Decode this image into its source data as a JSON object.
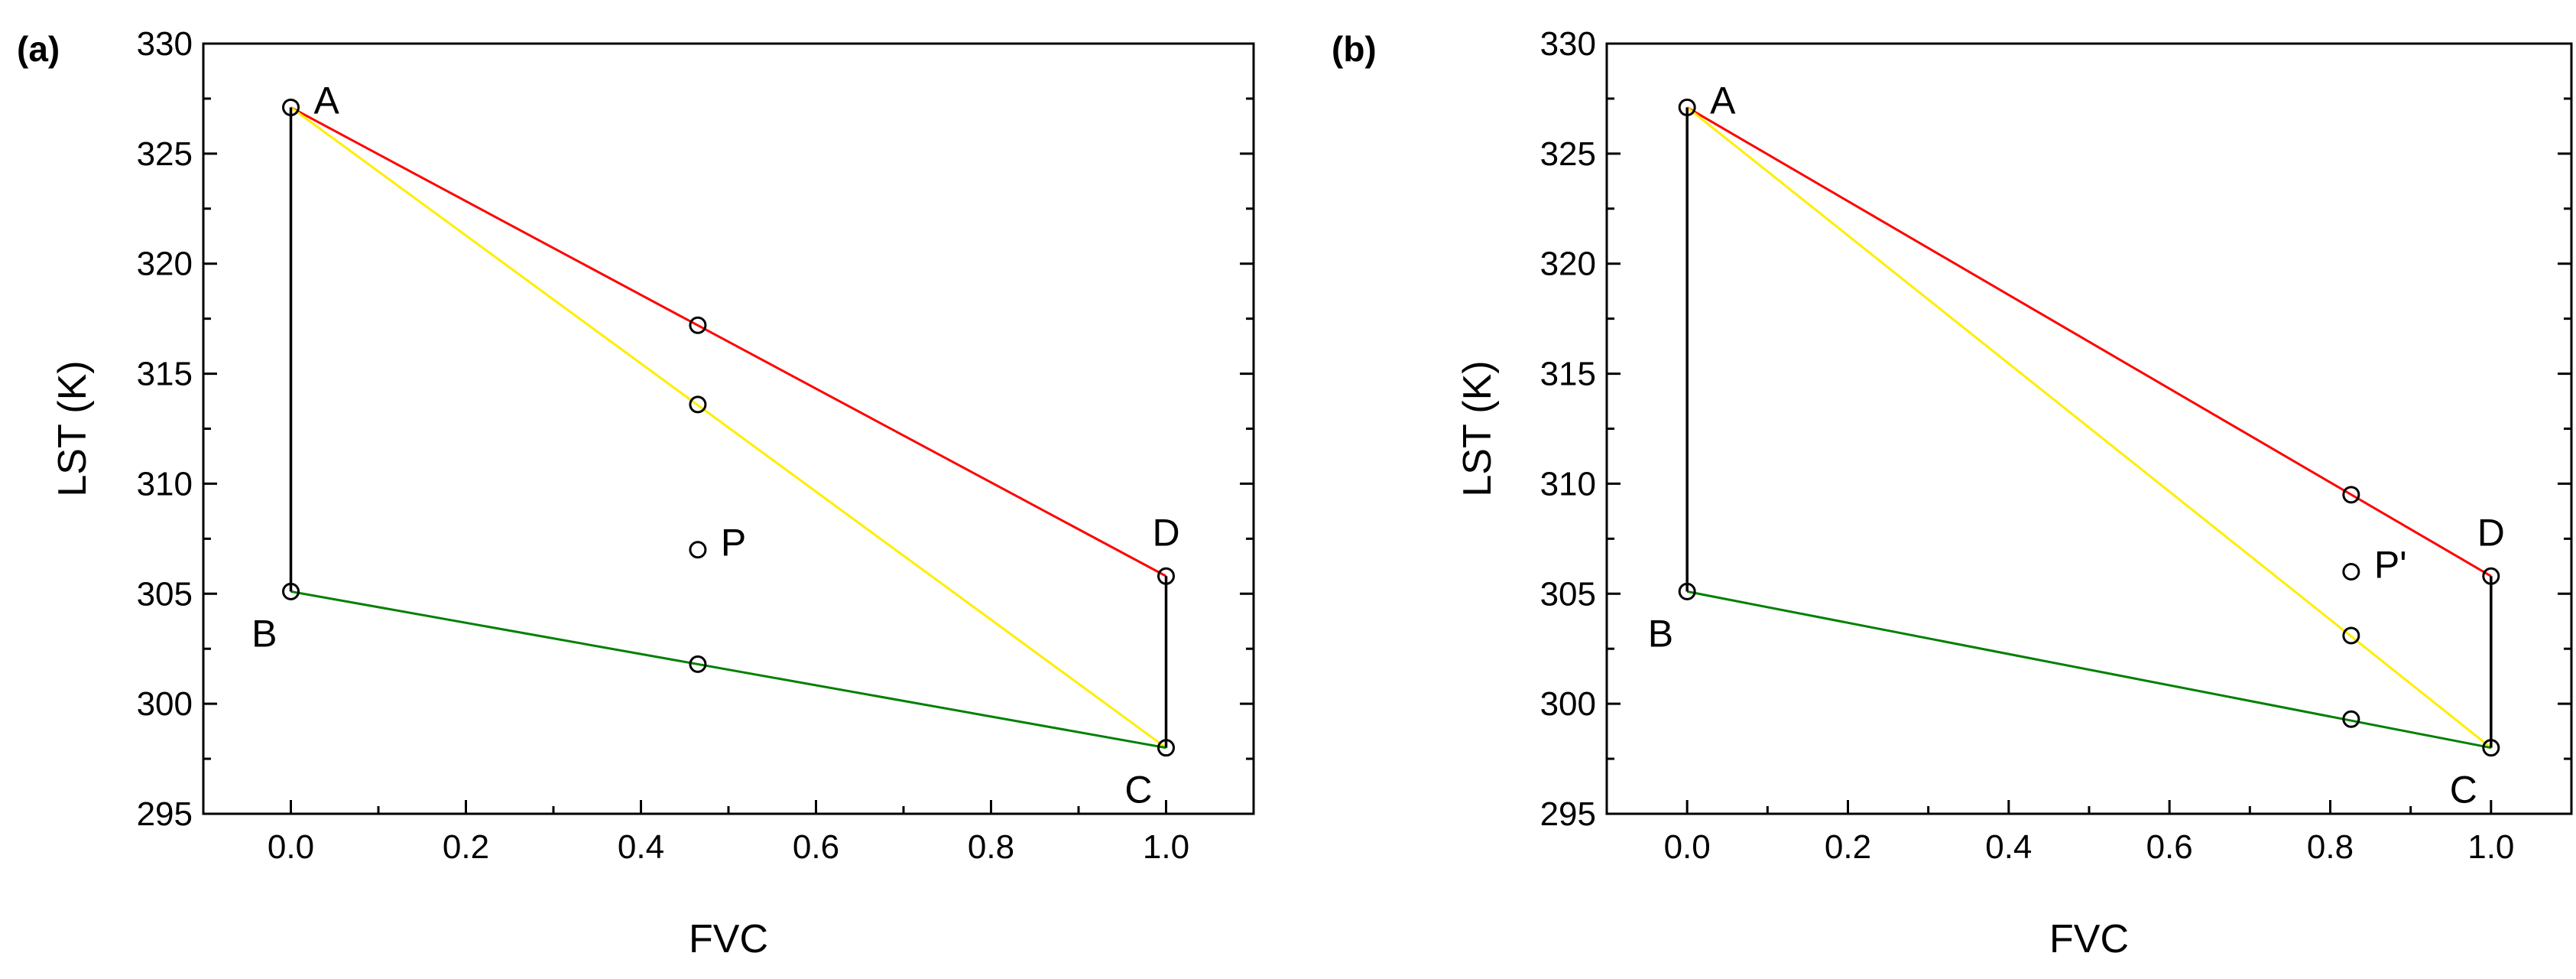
{
  "figure": {
    "panels": [
      "(a)",
      "(b)"
    ]
  },
  "chart_data": [
    {
      "panel_label": "(a)",
      "type": "line",
      "xlabel": "FVC",
      "ylabel": "LST (K)",
      "xlim": [
        -0.1,
        1.1
      ],
      "ylim": [
        295,
        330
      ],
      "xticks": [
        0.0,
        0.2,
        0.4,
        0.6,
        0.8,
        1.0
      ],
      "xtick_labels": [
        "0.0",
        "0.2",
        "0.4",
        "0.6",
        "0.8",
        "1.0"
      ],
      "yticks": [
        295,
        300,
        305,
        310,
        315,
        320,
        325,
        330
      ],
      "ytick_labels": [
        "295",
        "300",
        "305",
        "310",
        "315",
        "320",
        "325",
        "330"
      ],
      "series": [
        {
          "name": "AD",
          "color": "#ff0000",
          "x": [
            0.0,
            1.0
          ],
          "y": [
            327.1,
            305.8
          ]
        },
        {
          "name": "AC",
          "color": "#ffee00",
          "x": [
            0.0,
            1.0
          ],
          "y": [
            327.1,
            298.0
          ]
        },
        {
          "name": "BC",
          "color": "#008000",
          "x": [
            0.0,
            1.0
          ],
          "y": [
            305.1,
            298.0
          ]
        },
        {
          "name": "AB",
          "color": "#000000",
          "x": [
            0.0,
            0.0
          ],
          "y": [
            327.1,
            305.1
          ]
        },
        {
          "name": "DC",
          "color": "#000000",
          "x": [
            1.0,
            1.0
          ],
          "y": [
            305.8,
            298.0
          ]
        }
      ],
      "points": [
        {
          "x": 0.0,
          "y": 327.1
        },
        {
          "x": 0.0,
          "y": 305.1
        },
        {
          "x": 1.0,
          "y": 305.8
        },
        {
          "x": 1.0,
          "y": 298.0
        },
        {
          "x": 0.465,
          "y": 317.2
        },
        {
          "x": 0.465,
          "y": 313.6
        },
        {
          "x": 0.465,
          "y": 307.0
        },
        {
          "x": 0.465,
          "y": 301.8
        }
      ],
      "annotations": [
        {
          "text": "A",
          "x": 0.0,
          "y": 327.1,
          "pos": "right"
        },
        {
          "text": "B",
          "x": 0.0,
          "y": 305.1,
          "pos": "below-left"
        },
        {
          "text": "C",
          "x": 1.0,
          "y": 298.0,
          "pos": "below-left"
        },
        {
          "text": "D",
          "x": 1.0,
          "y": 305.8,
          "pos": "above"
        },
        {
          "text": "P",
          "x": 0.465,
          "y": 307.0,
          "pos": "right"
        }
      ]
    },
    {
      "panel_label": "(b)",
      "type": "line",
      "xlabel": "FVC",
      "ylabel": "LST (K)",
      "xlim": [
        -0.1,
        1.1
      ],
      "ylim": [
        295,
        330
      ],
      "xticks": [
        0.0,
        0.2,
        0.4,
        0.6,
        0.8,
        1.0
      ],
      "xtick_labels": [
        "0.0",
        "0.2",
        "0.4",
        "0.6",
        "0.8",
        "1.0"
      ],
      "yticks": [
        295,
        300,
        305,
        310,
        315,
        320,
        325,
        330
      ],
      "ytick_labels": [
        "295",
        "300",
        "305",
        "310",
        "315",
        "320",
        "325",
        "330"
      ],
      "series": [
        {
          "name": "AD",
          "color": "#ff0000",
          "x": [
            0.0,
            1.0
          ],
          "y": [
            327.1,
            305.8
          ]
        },
        {
          "name": "AC",
          "color": "#ffee00",
          "x": [
            0.0,
            1.0
          ],
          "y": [
            327.1,
            298.0
          ]
        },
        {
          "name": "BC",
          "color": "#008000",
          "x": [
            0.0,
            1.0
          ],
          "y": [
            305.1,
            298.0
          ]
        },
        {
          "name": "AB",
          "color": "#000000",
          "x": [
            0.0,
            0.0
          ],
          "y": [
            327.1,
            305.1
          ]
        },
        {
          "name": "DC",
          "color": "#000000",
          "x": [
            1.0,
            1.0
          ],
          "y": [
            305.8,
            298.0
          ]
        }
      ],
      "points": [
        {
          "x": 0.0,
          "y": 327.1
        },
        {
          "x": 0.0,
          "y": 305.1
        },
        {
          "x": 1.0,
          "y": 305.8
        },
        {
          "x": 1.0,
          "y": 298.0
        },
        {
          "x": 0.826,
          "y": 309.5
        },
        {
          "x": 0.826,
          "y": 306.0
        },
        {
          "x": 0.826,
          "y": 303.1
        },
        {
          "x": 0.826,
          "y": 299.3
        }
      ],
      "annotations": [
        {
          "text": "A",
          "x": 0.0,
          "y": 327.1,
          "pos": "right"
        },
        {
          "text": "B",
          "x": 0.0,
          "y": 305.1,
          "pos": "below-left"
        },
        {
          "text": "C",
          "x": 1.0,
          "y": 298.0,
          "pos": "below-left"
        },
        {
          "text": "D",
          "x": 1.0,
          "y": 305.8,
          "pos": "above"
        },
        {
          "text": "P'",
          "x": 0.826,
          "y": 306.0,
          "pos": "right"
        }
      ]
    }
  ]
}
